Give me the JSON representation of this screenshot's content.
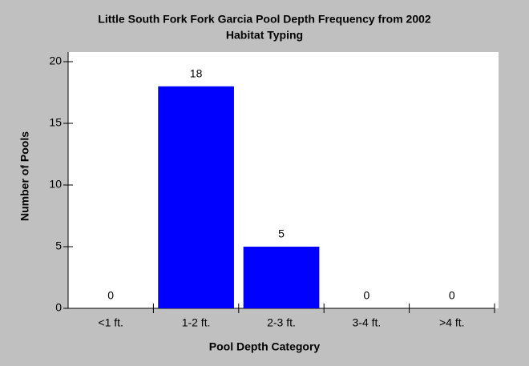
{
  "chart_data": {
    "type": "bar",
    "title": [
      "Little South Fork Fork Garcia Pool Depth Frequency from 2002",
      "Habitat Typing"
    ],
    "x_label": "Pool Depth Category",
    "y_label": "Number of Pools",
    "categories": [
      "<1 ft.",
      "1-2 ft.",
      "2-3 ft.",
      "3-4 ft.",
      ">4 ft."
    ],
    "values": [
      0,
      18,
      5,
      0,
      0
    ],
    "color": "#0000ff",
    "ylim": [
      0,
      20
    ],
    "yticks": [
      0,
      5,
      10,
      15,
      20
    ],
    "grid": false
  }
}
